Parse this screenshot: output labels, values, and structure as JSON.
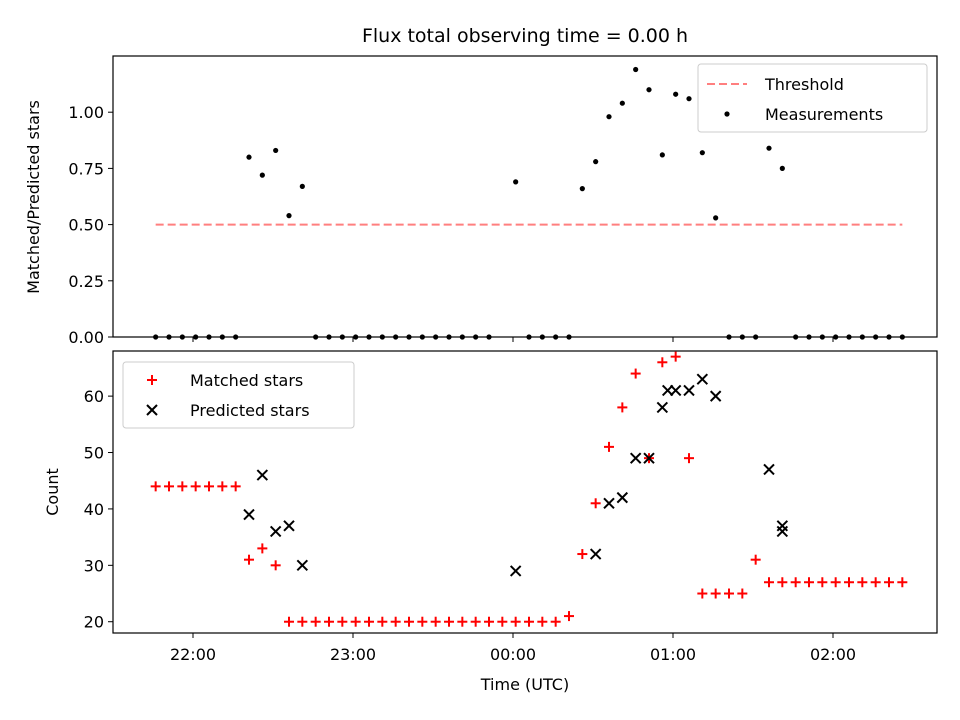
{
  "chart_data": [
    {
      "type": "scatter",
      "title": "Flux total observing time = 0.00 h",
      "xlabel": "",
      "ylabel": "Matched/Predicted stars",
      "xlim": [
        "21:30",
        "02:39"
      ],
      "ylim": [
        0.0,
        1.25
      ],
      "xticks": [
        "22:00",
        "23:00",
        "00:00",
        "01:00",
        "02:00"
      ],
      "yticks": [
        "0.00",
        "0.25",
        "0.50",
        "0.75",
        "1.00"
      ],
      "grid": false,
      "legend": "top-right",
      "series": [
        {
          "name": "Threshold",
          "style": "dashed-line",
          "color": "#ff7f7f",
          "x": [
            "21:46",
            "02:26"
          ],
          "y": [
            0.5,
            0.5
          ]
        },
        {
          "name": "Measurements",
          "style": "dot",
          "color": "#000000",
          "x": [
            "21:46",
            "21:51",
            "21:56",
            "22:01",
            "22:06",
            "22:11",
            "22:16",
            "22:21",
            "22:26",
            "22:31",
            "22:36",
            "22:41",
            "22:46",
            "22:51",
            "22:56",
            "23:01",
            "23:06",
            "23:11",
            "23:16",
            "23:21",
            "23:26",
            "23:31",
            "23:36",
            "23:41",
            "23:46",
            "23:51",
            "00:01",
            "00:06",
            "00:11",
            "00:16",
            "00:21",
            "00:26",
            "00:31",
            "00:36",
            "00:41",
            "00:46",
            "00:51",
            "00:56",
            "01:01",
            "01:06",
            "01:11",
            "01:16",
            "01:21",
            "01:26",
            "01:31",
            "01:36",
            "01:41",
            "01:46",
            "01:51",
            "01:56",
            "02:01",
            "02:06",
            "02:11",
            "02:16",
            "02:21",
            "02:26"
          ],
          "y": [
            0,
            0,
            0,
            0,
            0,
            0,
            0,
            0.8,
            0.72,
            0.83,
            0.54,
            0.67,
            0,
            0,
            0,
            0,
            0,
            0,
            0,
            0,
            0,
            0,
            0,
            0,
            0,
            0,
            0.69,
            0,
            0,
            0,
            0,
            0.66,
            0.78,
            0.98,
            1.04,
            1.19,
            1.1,
            0.81,
            1.08,
            1.06,
            0.82,
            0.53,
            0,
            0,
            0,
            0.84,
            0.75,
            0,
            0,
            0,
            0,
            0,
            0,
            0,
            0,
            0
          ]
        }
      ]
    },
    {
      "type": "scatter",
      "title": "",
      "xlabel": "Time (UTC)",
      "ylabel": "Count",
      "xlim": [
        "21:30",
        "02:39"
      ],
      "ylim": [
        18,
        68
      ],
      "xticks": [
        "22:00",
        "23:00",
        "00:00",
        "01:00",
        "02:00"
      ],
      "yticks": [
        "20",
        "30",
        "40",
        "50",
        "60"
      ],
      "grid": false,
      "legend": "top-left",
      "series": [
        {
          "name": "Matched stars",
          "marker": "plus",
          "color": "#ff0000",
          "x": [
            "21:46",
            "21:51",
            "21:56",
            "22:01",
            "22:06",
            "22:11",
            "22:16",
            "22:21",
            "22:26",
            "22:31",
            "22:36",
            "22:41",
            "22:46",
            "22:51",
            "22:56",
            "23:01",
            "23:06",
            "23:11",
            "23:16",
            "23:21",
            "23:26",
            "23:31",
            "23:36",
            "23:41",
            "23:46",
            "23:51",
            "23:56",
            "00:01",
            "00:06",
            "00:11",
            "00:16",
            "00:21",
            "00:26",
            "00:31",
            "00:36",
            "00:41",
            "00:46",
            "00:51",
            "00:56",
            "01:01",
            "01:06",
            "01:11",
            "01:16",
            "01:21",
            "01:26",
            "01:31",
            "01:36",
            "01:41",
            "01:46",
            "01:51",
            "01:56",
            "02:01",
            "02:06",
            "02:11",
            "02:16",
            "02:21",
            "02:26"
          ],
          "y": [
            44,
            44,
            44,
            44,
            44,
            44,
            44,
            31,
            33,
            30,
            20,
            20,
            20,
            20,
            20,
            20,
            20,
            20,
            20,
            20,
            20,
            20,
            20,
            20,
            20,
            20,
            20,
            20,
            20,
            20,
            20,
            21,
            32,
            41,
            51,
            58,
            64,
            49,
            66,
            67,
            49,
            25,
            25,
            25,
            25,
            31,
            27,
            27,
            27,
            27,
            27,
            27,
            27,
            27,
            27,
            27,
            27
          ]
        },
        {
          "name": "Predicted stars",
          "marker": "x",
          "color": "#000000",
          "x": [
            "22:21",
            "22:26",
            "22:31",
            "22:36",
            "22:41",
            "00:01",
            "00:31",
            "00:36",
            "00:41",
            "00:46",
            "00:51",
            "00:56",
            "00:58",
            "01:01",
            "01:06",
            "01:11",
            "01:16",
            "01:36",
            "01:41"
          ],
          "y": [
            39,
            46,
            36,
            37,
            30,
            29,
            32,
            41,
            42,
            49,
            49,
            58,
            61,
            61,
            61,
            63,
            60,
            47,
            37
          ]
        }
      ],
      "extra_predicted": {
        "x": [
          "01:41"
        ],
        "y": [
          36
        ]
      }
    }
  ]
}
